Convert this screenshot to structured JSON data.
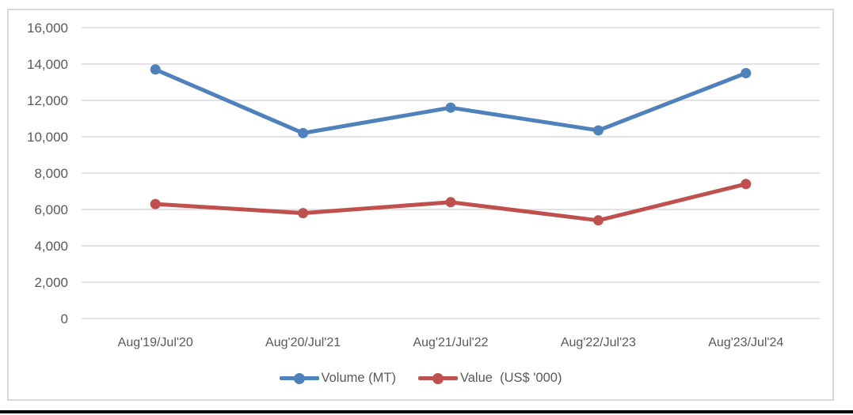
{
  "chart_data": {
    "type": "line",
    "title": "",
    "xlabel": "",
    "ylabel": "",
    "categories": [
      "Aug'19/Jul'20",
      "Aug'20/Jul'21",
      "Aug'21/Jul'22",
      "Aug'22/Jul'23",
      "Aug'23/Jul'24"
    ],
    "series": [
      {
        "name": "Volume (MT)",
        "color": "#4F81BD",
        "values": [
          13700,
          10200,
          11600,
          10350,
          13500
        ]
      },
      {
        "name": "Value  (US$ '000)",
        "color": "#C0504D",
        "values": [
          6300,
          5800,
          6400,
          5400,
          7400
        ]
      }
    ],
    "ylim": [
      0,
      16000
    ],
    "ytick_step": 2000,
    "ytick_labels": [
      "0",
      "2,000",
      "4,000",
      "6,000",
      "8,000",
      "10,000",
      "12,000",
      "14,000",
      "16,000"
    ],
    "grid": true,
    "legend_position": "bottom"
  },
  "styles": {
    "grid_color": "#D9D9D9",
    "axis_text_color": "#595959",
    "frame_border_color": "#D9D9D9",
    "background": "#FFFFFF",
    "bottom_rule_color": "#000000"
  }
}
